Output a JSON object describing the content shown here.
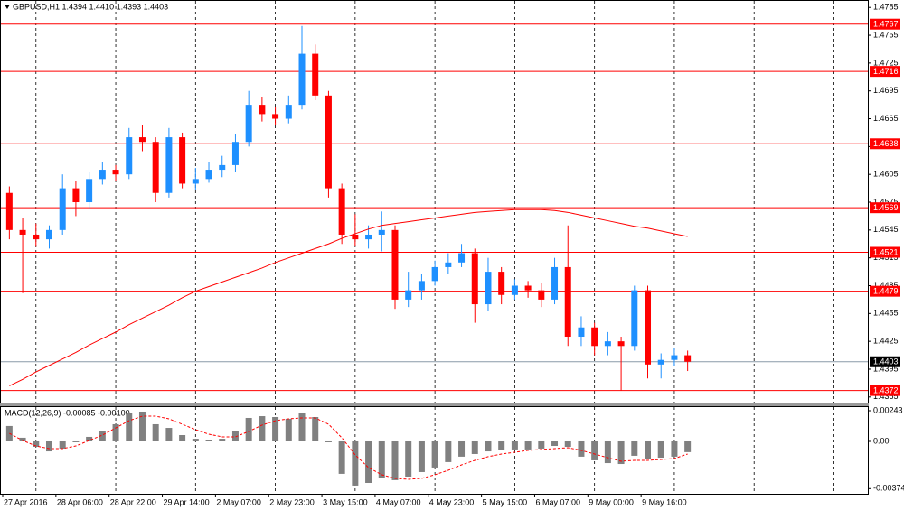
{
  "chart_data": [
    {
      "type": "candlestick",
      "title": "GBPUSD,H1  1.4394 1.4410 1.4393 1.4403",
      "categories": [
        "27 Apr 2016",
        null,
        null,
        null,
        "28 Apr 06:00",
        null,
        null,
        null,
        "28 Apr 22:00",
        null,
        null,
        null,
        "29 Apr 14:00",
        null,
        null,
        null,
        "2 May 07:00",
        null,
        null,
        null,
        "2 May 23:00",
        null,
        null,
        null,
        "3 May 15:00",
        null,
        null,
        null,
        "4 May 07:00",
        null,
        null,
        null,
        "4 May 23:00",
        null,
        null,
        null,
        "5 May 15:00",
        null,
        null,
        null,
        "6 May 07:00",
        null,
        null,
        null,
        "9 May 00:00",
        null,
        null,
        null,
        "9 May 16:00",
        null,
        null,
        null
      ],
      "open": [
        1.4585,
        1.4545,
        1.454,
        1.4535,
        1.4545,
        1.459,
        1.4575,
        1.46,
        1.461,
        1.4605,
        1.4645,
        1.464,
        1.4585,
        1.4645,
        1.4595,
        1.46,
        1.461,
        1.4615,
        1.464,
        1.468,
        1.467,
        1.4665,
        1.468,
        1.4735,
        1.469,
        1.459,
        1.454,
        1.4535,
        1.454,
        1.4545,
        1.447,
        1.448,
        1.449,
        1.4505,
        1.451,
        1.452,
        1.4465,
        1.45,
        1.4475,
        1.4485,
        1.448,
        1.447,
        1.4505,
        1.443,
        1.444,
        1.442,
        1.4425,
        1.442,
        1.448,
        1.44,
        1.4405,
        1.441
      ],
      "high": [
        1.4592,
        1.4558,
        1.4552,
        1.455,
        1.4605,
        1.4598,
        1.4608,
        1.4618,
        1.4615,
        1.4655,
        1.4658,
        1.4645,
        1.4655,
        1.465,
        1.4612,
        1.4618,
        1.4625,
        1.4648,
        1.4695,
        1.4688,
        1.4678,
        1.469,
        1.4765,
        1.4745,
        1.4695,
        1.4595,
        1.4562,
        1.455,
        1.4565,
        1.455,
        1.45,
        1.4498,
        1.4512,
        1.452,
        1.453,
        1.4525,
        1.4515,
        1.4505,
        1.4492,
        1.449,
        1.4488,
        1.4515,
        1.455,
        1.4452,
        1.4445,
        1.4435,
        1.443,
        1.4485,
        1.4485,
        1.4412,
        1.4418,
        1.4415
      ],
      "low": [
        1.4535,
        1.4477,
        1.4527,
        1.4525,
        1.454,
        1.456,
        1.4568,
        1.4594,
        1.4598,
        1.46,
        1.463,
        1.4575,
        1.458,
        1.459,
        1.4588,
        1.4596,
        1.4602,
        1.4608,
        1.4635,
        1.4662,
        1.4658,
        1.466,
        1.4675,
        1.4685,
        1.458,
        1.453,
        1.4528,
        1.4525,
        1.4522,
        1.446,
        1.4462,
        1.447,
        1.4485,
        1.4498,
        1.4505,
        1.4445,
        1.4458,
        1.4465,
        1.447,
        1.4472,
        1.4462,
        1.4465,
        1.442,
        1.442,
        1.441,
        1.441,
        1.4372,
        1.4415,
        1.4385,
        1.4385,
        1.4398,
        1.4393
      ],
      "close": [
        1.4545,
        1.454,
        1.4535,
        1.4545,
        1.459,
        1.4575,
        1.46,
        1.461,
        1.4605,
        1.4645,
        1.464,
        1.4585,
        1.4645,
        1.4595,
        1.46,
        1.461,
        1.4615,
        1.464,
        1.468,
        1.467,
        1.4665,
        1.468,
        1.4735,
        1.469,
        1.459,
        1.454,
        1.4535,
        1.454,
        1.4545,
        1.447,
        1.448,
        1.449,
        1.4505,
        1.451,
        1.452,
        1.4465,
        1.45,
        1.4475,
        1.4485,
        1.448,
        1.447,
        1.4505,
        1.443,
        1.444,
        1.442,
        1.4425,
        1.442,
        1.448,
        1.44,
        1.4405,
        1.441,
        1.4403
      ],
      "up_color": "#1e90ff",
      "down_color": "#ff0000",
      "line": {
        "color": "#ff0000",
        "values": [
          1.4377,
          1.4384,
          1.4392,
          1.4399,
          1.4406,
          1.4413,
          1.4421,
          1.4428,
          1.4435,
          1.4443,
          1.445,
          1.4457,
          1.4464,
          1.4472,
          1.4479,
          1.4484,
          1.4489,
          1.4494,
          1.4499,
          1.4504,
          1.451,
          1.4515,
          1.452,
          1.4525,
          1.453,
          1.4536,
          1.4541,
          1.4546,
          1.455,
          1.4552,
          1.4554,
          1.4556,
          1.4558,
          1.456,
          1.4562,
          1.4564,
          1.4565,
          1.4566,
          1.4567,
          1.4567,
          1.4567,
          1.4566,
          1.4564,
          1.4561,
          1.4558,
          1.4555,
          1.4552,
          1.4549,
          1.4547,
          1.4544,
          1.4541,
          1.4538
        ]
      },
      "levels": [
        1.4767,
        1.4716,
        1.4638,
        1.4569,
        1.4521,
        1.4479,
        1.4372
      ],
      "level_color": "#ff0000",
      "last_price": 1.4403,
      "ylim": [
        1.4358,
        1.4793
      ],
      "yticks": [
        1.4785,
        1.4755,
        1.4725,
        1.4695,
        1.4665,
        1.4635,
        1.4605,
        1.4575,
        1.4545,
        1.4515,
        1.4485,
        1.4455,
        1.4425,
        1.4395,
        1.4365
      ]
    },
    {
      "type": "macd",
      "title": "MACD(12,26,9) -0.00085 -0.00100",
      "histogram": {
        "color": "#808080",
        "values": [
          0.00122,
          0.00029,
          -0.00043,
          -0.00079,
          -0.00057,
          -7e-05,
          0.00036,
          0.00079,
          0.00136,
          0.00222,
          0.00236,
          0.00136,
          0.00107,
          0.0005,
          0.00021,
          0.00014,
          0.00021,
          0.00079,
          0.00186,
          0.002,
          0.00193,
          0.00179,
          0.00222,
          0.00193,
          -7e-05,
          -0.00257,
          -0.0035,
          -0.00329,
          -0.00293,
          -0.00307,
          -0.00279,
          -0.00243,
          -0.00207,
          -0.00164,
          -0.00121,
          -0.001,
          -0.00079,
          -0.00071,
          -0.00064,
          -0.00064,
          -0.00057,
          -0.00036,
          -0.00043,
          -0.00121,
          -0.0015,
          -0.00172,
          -0.00179,
          -0.00114,
          -0.00136,
          -0.00129,
          -0.00121,
          -0.00085
        ]
      },
      "signal": {
        "color": "#ff0000",
        "values": [
          0.00064,
          7e-05,
          -0.00036,
          -0.00057,
          -0.00057,
          -0.00036,
          7e-05,
          0.0005,
          0.00107,
          0.00164,
          0.002,
          0.002,
          0.00179,
          0.00136,
          0.00093,
          0.00057,
          0.00036,
          0.00036,
          0.00079,
          0.00129,
          0.00164,
          0.00179,
          0.00186,
          0.00186,
          0.00136,
          0.00029,
          -0.00107,
          -0.00207,
          -0.00264,
          -0.00293,
          -0.003,
          -0.00293,
          -0.00264,
          -0.00229,
          -0.00186,
          -0.0015,
          -0.00121,
          -0.001,
          -0.00086,
          -0.00071,
          -0.00064,
          -0.00057,
          -0.0005,
          -0.00071,
          -0.001,
          -0.00129,
          -0.00157,
          -0.0015,
          -0.0015,
          -0.00143,
          -0.00136,
          -0.001
        ]
      },
      "ylim": [
        -0.00422,
        0.00286
      ],
      "yticks": [
        0.00243,
        {
          "value": 0,
          "label": "0.00"
        },
        -0.00374
      ]
    }
  ]
}
